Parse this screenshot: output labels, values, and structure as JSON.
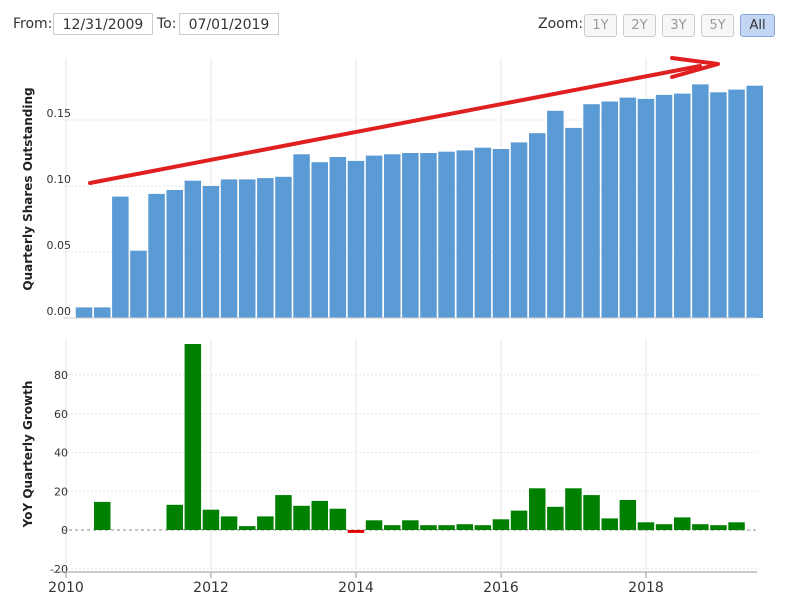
{
  "toolbar": {
    "from_label": "From:",
    "from_value": "12/31/2009",
    "to_label": "To:",
    "to_value": "07/01/2019",
    "zoom_label": "Zoom:",
    "zoom_buttons": [
      "1Y",
      "2Y",
      "3Y",
      "5Y",
      "All"
    ],
    "zoom_active": "All"
  },
  "chart_data": [
    {
      "type": "bar",
      "ylabel": "Quarterly Shares Outstanding",
      "ylim": [
        0,
        0.19
      ],
      "yticks": [
        "0.00",
        "0.05",
        "0.10",
        "0.15"
      ],
      "color": "#5b9bd5",
      "x": [
        "2010-03",
        "2010-06",
        "2010-09",
        "2010-12",
        "2011-03",
        "2011-06",
        "2011-09",
        "2011-12",
        "2012-03",
        "2012-06",
        "2012-09",
        "2012-12",
        "2013-03",
        "2013-06",
        "2013-09",
        "2013-12",
        "2014-03",
        "2014-06",
        "2014-09",
        "2014-12",
        "2015-03",
        "2015-06",
        "2015-09",
        "2015-12",
        "2016-03",
        "2016-06",
        "2016-09",
        "2016-12",
        "2017-03",
        "2017-06",
        "2017-09",
        "2017-12",
        "2018-03",
        "2018-06",
        "2018-09",
        "2018-12",
        "2019-03",
        "2019-06"
      ],
      "values": [
        0.008,
        0.008,
        0.092,
        0.051,
        0.094,
        0.097,
        0.104,
        0.1,
        0.105,
        0.105,
        0.106,
        0.107,
        0.124,
        0.118,
        0.122,
        0.119,
        0.123,
        0.124,
        0.125,
        0.125,
        0.126,
        0.127,
        0.129,
        0.128,
        0.133,
        0.14,
        0.157,
        0.144,
        0.162,
        0.164,
        0.167,
        0.166,
        0.169,
        0.17,
        0.177,
        0.171,
        0.173,
        0.176
      ],
      "annotation": "trend-arrow"
    },
    {
      "type": "bar",
      "ylabel": "YoY Quarterly Growth",
      "ylim": [
        -20,
        100
      ],
      "yticks": [
        "-20",
        "0",
        "20",
        "40",
        "60",
        "80"
      ],
      "positive_color": "#008000",
      "negative_color": "#e00000",
      "x": [
        "2010-03",
        "2010-06",
        "2010-09",
        "2010-12",
        "2011-03",
        "2011-06",
        "2011-09",
        "2011-12",
        "2012-03",
        "2012-06",
        "2012-09",
        "2012-12",
        "2013-03",
        "2013-06",
        "2013-09",
        "2013-12",
        "2014-03",
        "2014-06",
        "2014-09",
        "2014-12",
        "2015-03",
        "2015-06",
        "2015-09",
        "2015-12",
        "2016-03",
        "2016-06",
        "2016-09",
        "2016-12",
        "2017-03",
        "2017-06",
        "2017-09",
        "2017-12",
        "2018-03",
        "2018-06",
        "2018-09",
        "2018-12",
        "2019-03",
        "2019-06"
      ],
      "values": [
        null,
        14.5,
        null,
        null,
        null,
        13,
        96,
        10.5,
        7,
        2,
        7,
        18,
        12.5,
        15,
        11,
        -1.5,
        5,
        2.5,
        5,
        2.5,
        2.5,
        3,
        2.5,
        5.5,
        10,
        21.5,
        12,
        21.5,
        18,
        6,
        15.5,
        4,
        3,
        6.5,
        3,
        2.5,
        4,
        null
      ]
    }
  ],
  "x_axis": {
    "ticks": [
      "2010",
      "2012",
      "2014",
      "2016",
      "2018"
    ]
  }
}
